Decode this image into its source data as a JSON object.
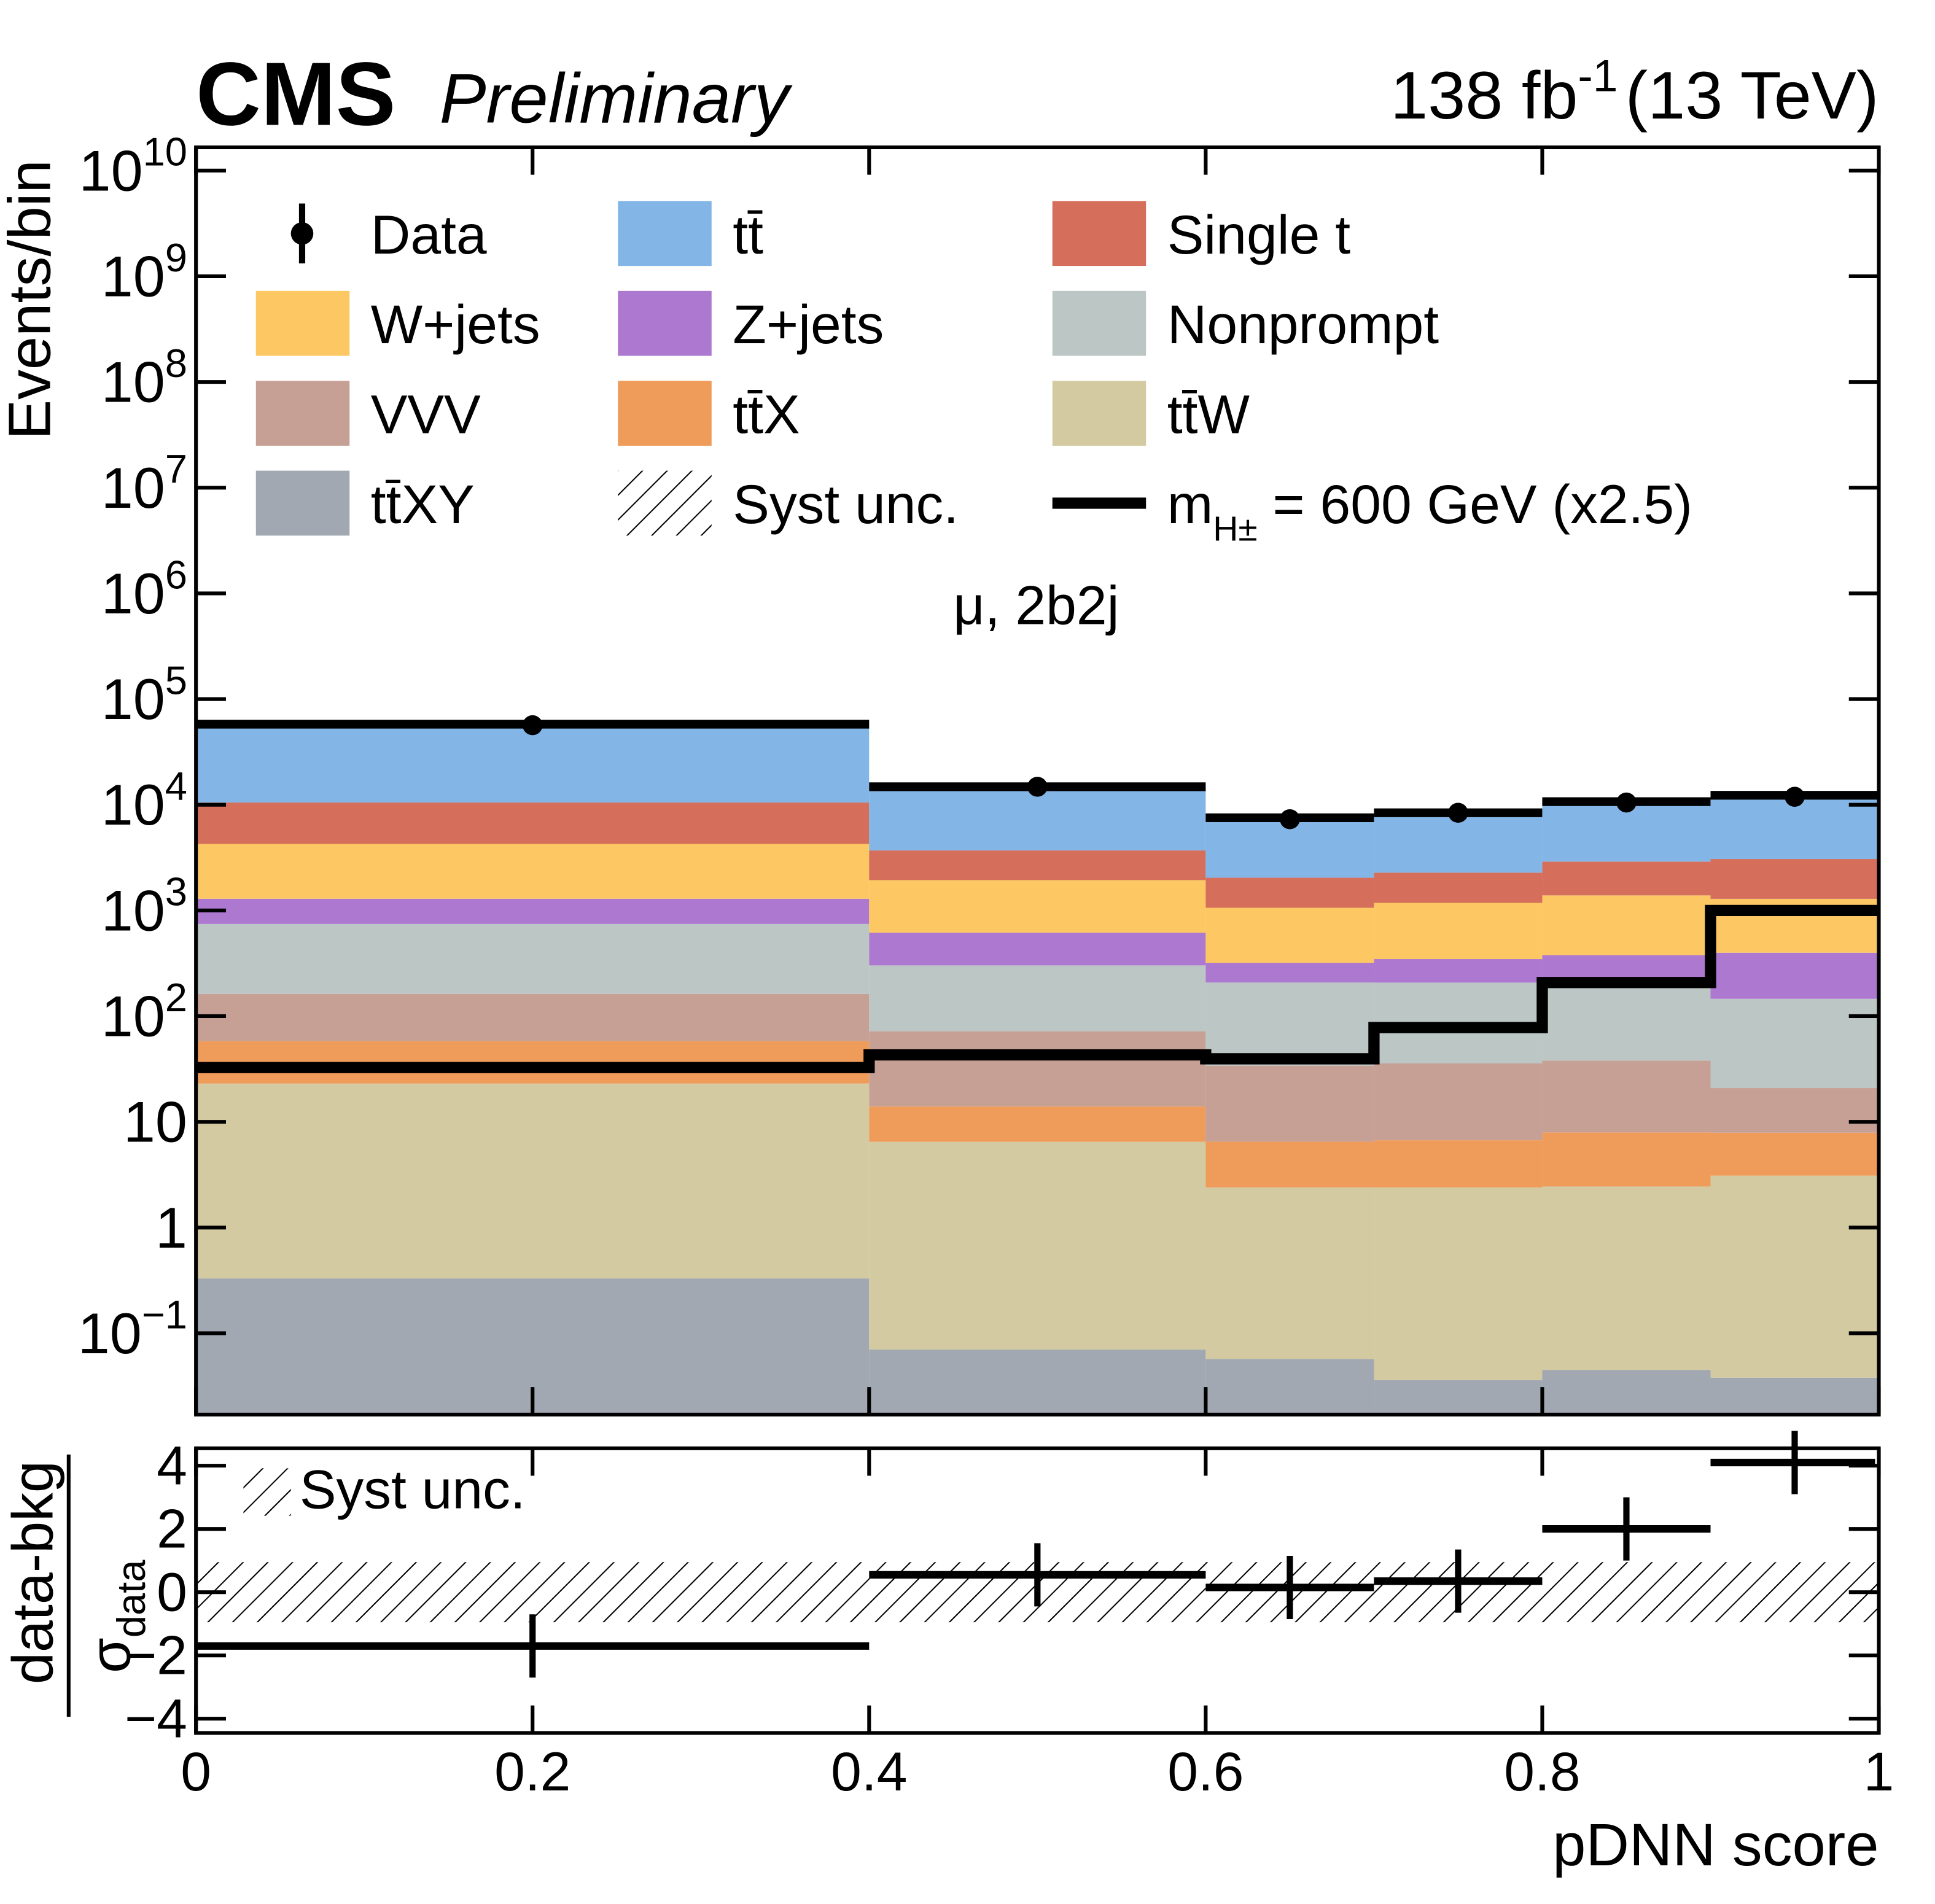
{
  "chart_data": {
    "type": "stacked_histogram",
    "experiment": "CMS",
    "status": "Preliminary",
    "lumi": {
      "text": "138 fb",
      "sup": "-1",
      "rest": "(13 TeV)"
    },
    "annotation": "μ, 2b2j",
    "x_label": "pDNN score",
    "y_label": "Events/bin",
    "bins": [
      0,
      0.4,
      0.6,
      0.7,
      0.8,
      0.9,
      1.0
    ],
    "xlim": [
      0,
      1
    ],
    "xticks": [
      0,
      0.2,
      0.4,
      0.6,
      0.8,
      1
    ],
    "ylim": [
      0.017,
      16600000000
    ],
    "log_y": true,
    "yticks": [
      {
        "value": 0.1,
        "label": "10",
        "exponent": "−1"
      },
      1,
      10,
      {
        "value": 100,
        "label": "10",
        "exponent": "2"
      },
      {
        "value": 1000,
        "label": "10",
        "exponent": "3"
      },
      {
        "value": 10000,
        "label": "10",
        "exponent": "4"
      },
      {
        "value": 100000,
        "label": "10",
        "exponent": "5"
      },
      {
        "value": 1000000,
        "label": "10",
        "exponent": "6"
      },
      {
        "value": 10000000,
        "label": "10",
        "exponent": "7"
      },
      {
        "value": 100000000,
        "label": "10",
        "exponent": "8"
      },
      {
        "value": 1000000000,
        "label": "10",
        "exponent": "9"
      },
      {
        "value": 10000000000,
        "label": "10",
        "exponent": "10"
      }
    ],
    "data": {
      "name": "Data",
      "x": [
        0.2,
        0.5,
        0.65,
        0.75,
        0.85,
        0.95
      ],
      "values": [
        56600,
        14800,
        7300,
        8400,
        10500,
        11900
      ]
    },
    "series": [
      {
        "name": "tt̄",
        "color": "#83b6e6",
        "values": [
          47300,
          11100,
          5490,
          6120,
          7800,
          9230
        ]
      },
      {
        "name": "Single t",
        "color": "#d56f5c",
        "values": [
          6240,
          1760,
          980,
          1100,
          1510,
          1780
        ]
      },
      {
        "name": "W+jets",
        "color": "#fdc863",
        "values": [
          2970,
          1320,
          740,
          833,
          1010,
          890
        ]
      },
      {
        "name": "Z+jets",
        "color": "#ad78cf",
        "values": [
          545,
          315,
          112,
          139,
          153,
          252
        ]
      },
      {
        "name": "Nonprompt",
        "color": "#bcc6c4",
        "values": [
          583,
          230,
          174,
          172,
          187,
          125
        ]
      },
      {
        "name": "VVV",
        "color": "#c7a095",
        "values": [
          104,
          58,
          27.5,
          29,
          30,
          13
        ]
      },
      {
        "name": "tt̄X",
        "color": "#ef9b5a",
        "values": [
          35,
          7.5,
          4.1,
          4.3,
          5.5,
          4.8
        ]
      },
      {
        "name": "tt̄W",
        "color": "#d3caa1",
        "values": [
          22.7,
          6.4,
          2.34,
          2.36,
          2.4,
          3.06
        ]
      },
      {
        "name": "tt̄XY",
        "color": "#a1a8b1",
        "values": [
          0.33,
          0.07,
          0.057,
          0.036,
          0.045,
          0.038
        ]
      }
    ],
    "syst_label": "Syst unc.",
    "signal": {
      "name": "m",
      "name_sub": "H±",
      "name_rest": " = 600 GeV (x2.5)",
      "color": "#000000",
      "values": [
        32.6,
        43,
        39.5,
        78,
        208,
        1000
      ]
    },
    "ratio": {
      "y_label": "data-bkg",
      "y_label_denominator": "σ",
      "y_label_denominator_sub": "data",
      "ylim": [
        -4.45,
        4.55
      ],
      "yticks": [
        {
          "value": -4,
          "label": "−4"
        },
        {
          "value": -2,
          "label": "−2"
        },
        0,
        2,
        4
      ],
      "values": [
        -1.7,
        0.55,
        0.15,
        0.35,
        2.0,
        4.1
      ],
      "errors": [
        1,
        1,
        1,
        1,
        1,
        1
      ],
      "syst": [
        0.95,
        0.95,
        0.95,
        0.95,
        0.95,
        0.95
      ]
    }
  }
}
